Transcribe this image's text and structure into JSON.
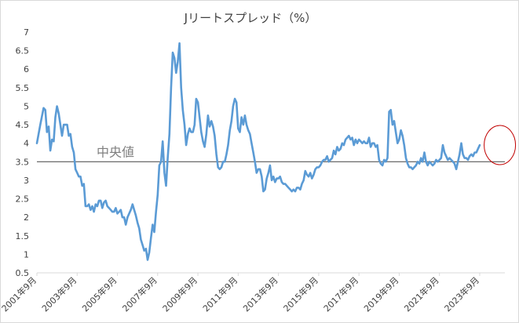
{
  "chart_data": {
    "type": "line",
    "title": "Jリートスプレッド（%）",
    "ylim": [
      0.5,
      7
    ],
    "yticks": [
      "7",
      "6.5",
      "6",
      "5.5",
      "5",
      "4.5",
      "4",
      "3.5",
      "3",
      "2.5",
      "2",
      "1.5",
      "1",
      "0.5"
    ],
    "xticks": [
      "2001年9月",
      "2003年9月",
      "2005年9月",
      "2007年9月",
      "2009年9月",
      "2011年9月",
      "2013年9月",
      "2015年9月",
      "2017年9月",
      "2019年9月",
      "2021年9月",
      "2023年9月"
    ],
    "x_start": "2001-09",
    "x_end": "2024-12",
    "median": {
      "label": "中央値",
      "value": 3.5
    },
    "highlight": {
      "label": "",
      "from": "2024-06",
      "to": "2024-12"
    },
    "colors": {
      "series": "#5b9bd5",
      "median": "#595959",
      "highlight": "#c00000"
    },
    "series": [
      {
        "name": "",
        "points": [
          [
            "2001-09",
            4.0
          ],
          [
            "2001-11",
            4.5
          ],
          [
            "2002-01",
            4.95
          ],
          [
            "2002-02",
            4.9
          ],
          [
            "2002-03",
            4.3
          ],
          [
            "2002-04",
            4.45
          ],
          [
            "2002-05",
            3.8
          ],
          [
            "2002-06",
            4.1
          ],
          [
            "2002-07",
            4.05
          ],
          [
            "2002-08",
            4.7
          ],
          [
            "2002-09",
            5.0
          ],
          [
            "2002-10",
            4.8
          ],
          [
            "2002-11",
            4.5
          ],
          [
            "2002-12",
            4.2
          ],
          [
            "2003-01",
            4.5
          ],
          [
            "2003-03",
            4.5
          ],
          [
            "2003-04",
            4.2
          ],
          [
            "2003-05",
            4.25
          ],
          [
            "2003-06",
            3.9
          ],
          [
            "2003-07",
            3.75
          ],
          [
            "2003-08",
            3.3
          ],
          [
            "2003-09",
            3.2
          ],
          [
            "2003-10",
            3.1
          ],
          [
            "2003-11",
            3.1
          ],
          [
            "2003-12",
            2.85
          ],
          [
            "2004-01",
            2.9
          ],
          [
            "2004-02",
            2.3
          ],
          [
            "2004-03",
            2.3
          ],
          [
            "2004-04",
            2.35
          ],
          [
            "2004-05",
            2.2
          ],
          [
            "2004-06",
            2.3
          ],
          [
            "2004-07",
            2.15
          ],
          [
            "2004-08",
            2.35
          ],
          [
            "2004-09",
            2.3
          ],
          [
            "2004-10",
            2.45
          ],
          [
            "2004-11",
            2.45
          ],
          [
            "2004-12",
            2.25
          ],
          [
            "2005-01",
            2.4
          ],
          [
            "2005-02",
            2.45
          ],
          [
            "2005-03",
            2.3
          ],
          [
            "2005-04",
            2.25
          ],
          [
            "2005-05",
            2.2
          ],
          [
            "2005-06",
            2.15
          ],
          [
            "2005-07",
            2.15
          ],
          [
            "2005-08",
            2.25
          ],
          [
            "2005-09",
            2.1
          ],
          [
            "2005-10",
            2.15
          ],
          [
            "2005-11",
            2.2
          ],
          [
            "2005-12",
            2.0
          ],
          [
            "2006-01",
            2.0
          ],
          [
            "2006-02",
            1.8
          ],
          [
            "2006-03",
            2.0
          ],
          [
            "2006-04",
            2.1
          ],
          [
            "2006-05",
            2.2
          ],
          [
            "2006-06",
            2.35
          ],
          [
            "2006-07",
            2.2
          ],
          [
            "2006-08",
            2.05
          ],
          [
            "2006-09",
            1.85
          ],
          [
            "2006-10",
            1.7
          ],
          [
            "2006-11",
            1.4
          ],
          [
            "2006-12",
            1.25
          ],
          [
            "2007-01",
            1.1
          ],
          [
            "2007-02",
            1.15
          ],
          [
            "2007-03",
            0.85
          ],
          [
            "2007-04",
            1.05
          ],
          [
            "2007-05",
            1.45
          ],
          [
            "2007-06",
            1.8
          ],
          [
            "2007-07",
            1.6
          ],
          [
            "2007-08",
            2.15
          ],
          [
            "2007-09",
            2.6
          ],
          [
            "2007-10",
            3.4
          ],
          [
            "2007-11",
            3.5
          ],
          [
            "2007-12",
            4.05
          ],
          [
            "2008-01",
            3.2
          ],
          [
            "2008-02",
            2.85
          ],
          [
            "2008-03",
            3.6
          ],
          [
            "2008-04",
            4.25
          ],
          [
            "2008-05",
            5.5
          ],
          [
            "2008-06",
            6.45
          ],
          [
            "2008-07",
            6.3
          ],
          [
            "2008-08",
            5.9
          ],
          [
            "2008-09",
            6.2
          ],
          [
            "2008-10",
            6.7
          ],
          [
            "2008-11",
            5.5
          ],
          [
            "2008-12",
            4.9
          ],
          [
            "2009-01",
            4.5
          ],
          [
            "2009-02",
            3.95
          ],
          [
            "2009-03",
            4.25
          ],
          [
            "2009-04",
            4.4
          ],
          [
            "2009-05",
            4.3
          ],
          [
            "2009-06",
            4.3
          ],
          [
            "2009-07",
            4.5
          ],
          [
            "2009-08",
            5.2
          ],
          [
            "2009-09",
            5.1
          ],
          [
            "2009-10",
            4.7
          ],
          [
            "2009-11",
            4.3
          ],
          [
            "2009-12",
            4.05
          ],
          [
            "2010-01",
            3.9
          ],
          [
            "2010-02",
            4.25
          ],
          [
            "2010-03",
            4.75
          ],
          [
            "2010-04",
            4.45
          ],
          [
            "2010-05",
            4.6
          ],
          [
            "2010-06",
            4.45
          ],
          [
            "2010-07",
            4.2
          ],
          [
            "2010-08",
            3.7
          ],
          [
            "2010-09",
            3.35
          ],
          [
            "2010-10",
            3.3
          ],
          [
            "2010-11",
            3.35
          ],
          [
            "2010-12",
            3.5
          ],
          [
            "2011-01",
            3.5
          ],
          [
            "2011-02",
            3.7
          ],
          [
            "2011-03",
            3.95
          ],
          [
            "2011-04",
            4.35
          ],
          [
            "2011-05",
            4.6
          ],
          [
            "2011-06",
            5.0
          ],
          [
            "2011-07",
            5.2
          ],
          [
            "2011-08",
            5.1
          ],
          [
            "2011-09",
            4.4
          ],
          [
            "2011-10",
            4.3
          ],
          [
            "2011-11",
            4.7
          ],
          [
            "2011-12",
            4.5
          ],
          [
            "2012-01",
            4.75
          ],
          [
            "2012-02",
            4.5
          ],
          [
            "2012-03",
            4.35
          ],
          [
            "2012-04",
            4.25
          ],
          [
            "2012-05",
            4.0
          ],
          [
            "2012-06",
            3.75
          ],
          [
            "2012-07",
            3.5
          ],
          [
            "2012-08",
            3.2
          ],
          [
            "2012-09",
            3.3
          ],
          [
            "2012-10",
            3.3
          ],
          [
            "2012-11",
            3.1
          ],
          [
            "2012-12",
            2.7
          ],
          [
            "2013-01",
            2.75
          ],
          [
            "2013-02",
            3.05
          ],
          [
            "2013-03",
            3.2
          ],
          [
            "2013-04",
            3.4
          ],
          [
            "2013-05",
            3.0
          ],
          [
            "2013-06",
            3.1
          ],
          [
            "2013-07",
            2.95
          ],
          [
            "2013-08",
            3.05
          ],
          [
            "2013-09",
            3.05
          ],
          [
            "2013-10",
            3.1
          ],
          [
            "2013-11",
            2.95
          ],
          [
            "2013-12",
            2.9
          ],
          [
            "2014-01",
            2.9
          ],
          [
            "2014-02",
            2.85
          ],
          [
            "2014-03",
            2.8
          ],
          [
            "2014-04",
            2.75
          ],
          [
            "2014-05",
            2.7
          ],
          [
            "2014-06",
            2.75
          ],
          [
            "2014-07",
            2.7
          ],
          [
            "2014-08",
            2.8
          ],
          [
            "2014-09",
            2.8
          ],
          [
            "2014-10",
            2.75
          ],
          [
            "2014-11",
            2.9
          ],
          [
            "2014-12",
            3.0
          ],
          [
            "2015-01",
            3.25
          ],
          [
            "2015-02",
            3.15
          ],
          [
            "2015-03",
            3.1
          ],
          [
            "2015-04",
            3.2
          ],
          [
            "2015-05",
            3.05
          ],
          [
            "2015-06",
            3.15
          ],
          [
            "2015-07",
            3.3
          ],
          [
            "2015-08",
            3.35
          ],
          [
            "2015-09",
            3.35
          ],
          [
            "2015-10",
            3.4
          ],
          [
            "2015-11",
            3.5
          ],
          [
            "2015-12",
            3.55
          ],
          [
            "2016-01",
            3.55
          ],
          [
            "2016-02",
            3.65
          ],
          [
            "2016-03",
            3.5
          ],
          [
            "2016-04",
            3.55
          ],
          [
            "2016-05",
            3.6
          ],
          [
            "2016-06",
            3.8
          ],
          [
            "2016-07",
            3.7
          ],
          [
            "2016-08",
            3.9
          ],
          [
            "2016-09",
            3.8
          ],
          [
            "2016-10",
            3.85
          ],
          [
            "2016-11",
            4.0
          ],
          [
            "2016-12",
            3.95
          ],
          [
            "2017-01",
            4.1
          ],
          [
            "2017-02",
            4.15
          ],
          [
            "2017-03",
            4.2
          ],
          [
            "2017-04",
            4.1
          ],
          [
            "2017-05",
            4.15
          ],
          [
            "2017-06",
            3.95
          ],
          [
            "2017-07",
            4.1
          ],
          [
            "2017-08",
            4.0
          ],
          [
            "2017-09",
            4.1
          ],
          [
            "2017-10",
            4.05
          ],
          [
            "2017-11",
            4.0
          ],
          [
            "2017-12",
            4.05
          ],
          [
            "2018-01",
            4.0
          ],
          [
            "2018-02",
            4.0
          ],
          [
            "2018-03",
            4.15
          ],
          [
            "2018-04",
            3.9
          ],
          [
            "2018-05",
            4.0
          ],
          [
            "2018-06",
            4.0
          ],
          [
            "2018-07",
            3.9
          ],
          [
            "2018-08",
            3.95
          ],
          [
            "2018-09",
            3.55
          ],
          [
            "2018-10",
            3.45
          ],
          [
            "2018-11",
            3.4
          ],
          [
            "2018-12",
            3.55
          ],
          [
            "2019-01",
            3.5
          ],
          [
            "2019-02",
            3.6
          ],
          [
            "2019-03",
            4.85
          ],
          [
            "2019-04",
            4.9
          ],
          [
            "2019-05",
            4.5
          ],
          [
            "2019-06",
            4.6
          ],
          [
            "2019-07",
            4.3
          ],
          [
            "2019-08",
            4.0
          ],
          [
            "2019-09",
            4.1
          ],
          [
            "2019-10",
            4.35
          ],
          [
            "2019-11",
            4.2
          ],
          [
            "2019-12",
            3.95
          ],
          [
            "2020-01",
            3.6
          ],
          [
            "2020-02",
            3.45
          ],
          [
            "2020-03",
            3.35
          ],
          [
            "2020-04",
            3.35
          ],
          [
            "2020-05",
            3.3
          ],
          [
            "2020-06",
            3.35
          ],
          [
            "2020-07",
            3.4
          ],
          [
            "2020-08",
            3.5
          ],
          [
            "2020-09",
            3.45
          ],
          [
            "2020-10",
            3.6
          ],
          [
            "2020-11",
            3.5
          ],
          [
            "2020-12",
            3.75
          ],
          [
            "2021-01",
            3.5
          ],
          [
            "2021-02",
            3.4
          ],
          [
            "2021-03",
            3.5
          ],
          [
            "2021-04",
            3.45
          ],
          [
            "2021-05",
            3.4
          ],
          [
            "2021-06",
            3.45
          ],
          [
            "2021-07",
            3.55
          ],
          [
            "2021-08",
            3.5
          ],
          [
            "2021-09",
            3.55
          ],
          [
            "2021-10",
            3.6
          ],
          [
            "2021-11",
            3.95
          ],
          [
            "2021-12",
            3.75
          ],
          [
            "2022-01",
            3.65
          ],
          [
            "2022-02",
            3.55
          ],
          [
            "2022-03",
            3.6
          ],
          [
            "2022-04",
            3.55
          ],
          [
            "2022-05",
            3.5
          ],
          [
            "2022-06",
            3.45
          ],
          [
            "2022-07",
            3.3
          ],
          [
            "2022-08",
            3.5
          ],
          [
            "2022-09",
            3.7
          ],
          [
            "2022-10",
            4.0
          ],
          [
            "2022-11",
            3.7
          ],
          [
            "2022-12",
            3.6
          ],
          [
            "2023-01",
            3.6
          ],
          [
            "2023-02",
            3.55
          ],
          [
            "2023-03",
            3.65
          ],
          [
            "2023-04",
            3.7
          ],
          [
            "2023-05",
            3.65
          ],
          [
            "2023-06",
            3.75
          ],
          [
            "2023-07",
            3.75
          ],
          [
            "2023-08",
            3.85
          ],
          [
            "2023-09",
            3.95
          ]
        ]
      }
    ]
  }
}
